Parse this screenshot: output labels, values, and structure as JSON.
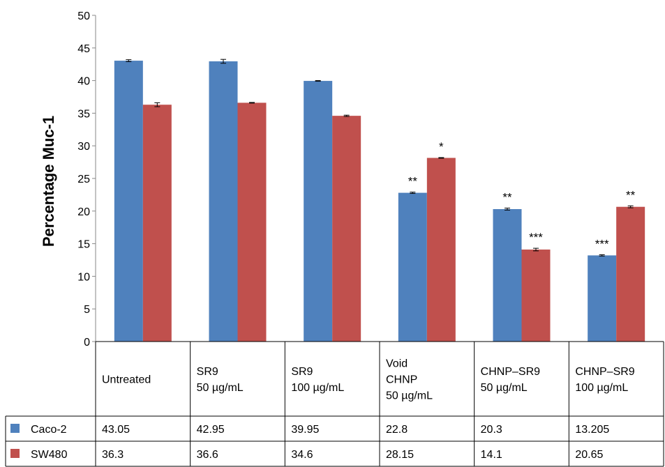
{
  "chart_data": {
    "type": "bar",
    "ylabel": "Percentage Muc-1",
    "ylim": [
      0,
      50
    ],
    "yticks": [
      "0",
      "5",
      "10",
      "15",
      "20",
      "25",
      "30",
      "35",
      "40",
      "45",
      "50"
    ],
    "grid": false,
    "categories": [
      [
        "Untreated"
      ],
      [
        "SR9",
        "50 µg/mL"
      ],
      [
        "SR9",
        "100 µg/mL"
      ],
      [
        "Void",
        "CHNP",
        "50 µg/mL"
      ],
      [
        "CHNP–SR9",
        "50 µg/mL"
      ],
      [
        "CHNP–SR9",
        "100 µg/mL"
      ]
    ],
    "series": [
      {
        "name": "Caco-2",
        "color": "#4f81bd",
        "values": [
          43.05,
          42.95,
          39.95,
          22.8,
          20.3,
          13.205
        ],
        "table_values": [
          "43.05",
          "42.95",
          "39.95",
          "22.8",
          "20.3",
          "13.205"
        ],
        "errors": [
          0.15,
          0.3,
          0.05,
          0.1,
          0.15,
          0.1
        ],
        "annotations": [
          "",
          "",
          "",
          "**",
          "**",
          "***"
        ]
      },
      {
        "name": "SW480",
        "color": "#c0504d",
        "values": [
          36.3,
          36.6,
          34.6,
          28.15,
          14.1,
          20.65
        ],
        "table_values": [
          "36.3",
          "36.6",
          "34.6",
          "28.15",
          "14.1",
          "20.65"
        ],
        "errors": [
          0.3,
          0.05,
          0.1,
          0.05,
          0.2,
          0.15
        ],
        "annotations": [
          "",
          "",
          "",
          "*",
          "***",
          "**"
        ]
      }
    ],
    "legend": "data-table"
  }
}
